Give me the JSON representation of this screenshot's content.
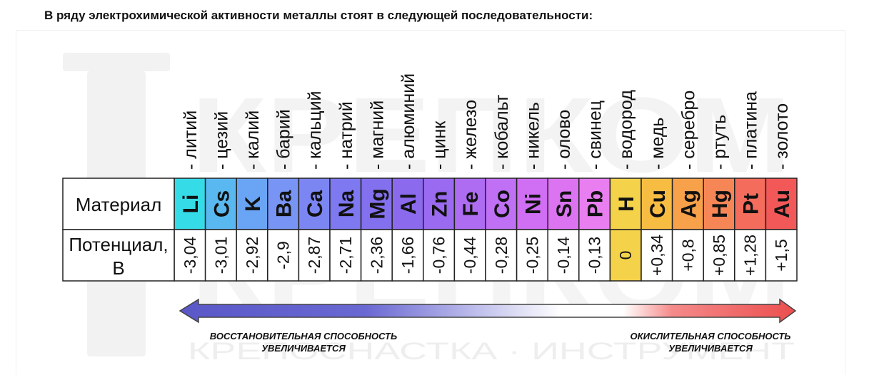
{
  "heading": "В ряду электрохимической активности металлы стоят в следующей последовательности:",
  "table": {
    "row_label_material": "Материал",
    "row_label_potential_line1": "Потенциал,",
    "row_label_potential_line2": "В"
  },
  "elements": [
    {
      "name": "литий",
      "symbol": "Li",
      "potential": "-3,04",
      "value": -3.04,
      "color": "#35dbe6"
    },
    {
      "name": "цезий",
      "symbol": "Cs",
      "potential": "-3,01",
      "value": -3.01,
      "color": "#5ab8f0"
    },
    {
      "name": "калий",
      "symbol": "K",
      "potential": "-2,92",
      "value": -2.92,
      "color": "#6aa4f4"
    },
    {
      "name": "барий",
      "symbol": "Ba",
      "potential": "-2,9",
      "value": -2.9,
      "color": "#7895f5"
    },
    {
      "name": "кальций",
      "symbol": "Ca",
      "potential": "-2,87",
      "value": -2.87,
      "color": "#7c86f3"
    },
    {
      "name": "натрий",
      "symbol": "Na",
      "potential": "-2,71",
      "value": -2.71,
      "color": "#7e78f1"
    },
    {
      "name": "магний",
      "symbol": "Mg",
      "potential": "-2,36",
      "value": -2.36,
      "color": "#8370ee"
    },
    {
      "name": "алюминий",
      "symbol": "Al",
      "potential": "-1,66",
      "value": -1.66,
      "color": "#8b6aee"
    },
    {
      "name": "цинк",
      "symbol": "Zn",
      "potential": "-0,76",
      "value": -0.76,
      "color": "#9a6af0"
    },
    {
      "name": "железо",
      "symbol": "Fe",
      "potential": "-0,44",
      "value": -0.44,
      "color": "#ad6cf2"
    },
    {
      "name": "кобальт",
      "symbol": "Co",
      "potential": "-0,28",
      "value": -0.28,
      "color": "#bf70f4"
    },
    {
      "name": "никель",
      "symbol": "Ni",
      "potential": "-0,25",
      "value": -0.25,
      "color": "#d06ef4"
    },
    {
      "name": "олово",
      "symbol": "Sn",
      "potential": "-0,14",
      "value": -0.14,
      "color": "#dc74f2"
    },
    {
      "name": "свинец",
      "symbol": "Pb",
      "potential": "-0,13",
      "value": -0.13,
      "color": "#e87ef0"
    },
    {
      "name": "водород",
      "symbol": "H",
      "potential": "0",
      "value": 0,
      "color": "#f4d24a"
    },
    {
      "name": "медь",
      "symbol": "Cu",
      "potential": "+0,34",
      "value": 0.34,
      "color": "#f7bc42"
    },
    {
      "name": "серебро",
      "symbol": "Ag",
      "potential": "+0,8",
      "value": 0.8,
      "color": "#f7a14a"
    },
    {
      "name": "ртуть",
      "symbol": "Hg",
      "potential": "+0,85",
      "value": 0.85,
      "color": "#f68656"
    },
    {
      "name": "платина",
      "symbol": "Pt",
      "potential": "+1,28",
      "value": 1.28,
      "color": "#f46c5c"
    },
    {
      "name": "золото",
      "symbol": "Au",
      "potential": "+1,5",
      "value": 1.5,
      "color": "#f25858"
    }
  ],
  "arrow": {
    "left_line1": "ВОССТАНОВИТЕЛЬНАЯ СПОСОБНОСТЬ",
    "left_line2": "УВЕЛИЧИВАЕТСЯ",
    "right_line1": "ОКИСЛИТЕЛЬНАЯ СПОСОБНОСТЬ",
    "right_line2": "УВЕЛИЧИВАЕТСЯ",
    "color_left": "#5a58c8",
    "color_right": "#ec4e4e"
  },
  "watermark": {
    "brand": "КРЕПКОМ",
    "tagline": "КРЕПОСНАСТКА · ИНСТРУМЕНТ"
  }
}
